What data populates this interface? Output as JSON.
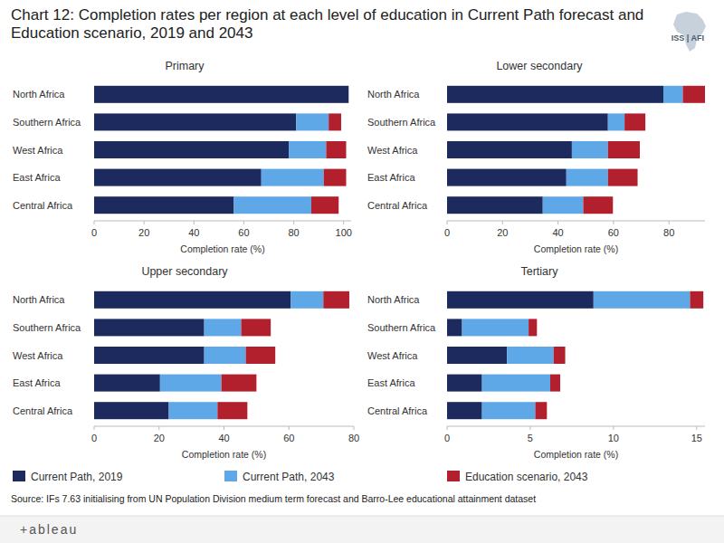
{
  "title": "Chart 12: Completion rates per region at each level of education in Current Path forecast and Education scenario, 2019 and 2043",
  "source": "Source: IFs 7.63 initialising from UN Population Division medium term forecast and Barro-Lee educational attainment dataset",
  "brand": "ISS | AFI",
  "footer": "+ableau",
  "chart_data": [
    {
      "type": "bar",
      "orientation": "horizontal",
      "stacked": true,
      "grid": false,
      "legend": "bottom",
      "title": "Primary",
      "xlabel": "Completion rate (%)",
      "categories": [
        "North Africa",
        "Southern Africa",
        "West Africa",
        "East Africa",
        "Central Africa"
      ],
      "xlim": [
        0,
        103
      ],
      "xticks": [
        0,
        20,
        40,
        60,
        80,
        100
      ],
      "series": [
        {
          "name": "Current Path, 2019",
          "color": "#1c2a5e",
          "values": [
            102,
            81,
            78,
            67,
            56
          ]
        },
        {
          "name": "Current Path, 2043",
          "color": "#5ea8e8",
          "values": [
            0,
            13,
            15,
            25,
            31
          ]
        },
        {
          "name": "Education scenario, 2043",
          "color": "#b3202d",
          "values": [
            0,
            5,
            8,
            9,
            11
          ]
        }
      ]
    },
    {
      "type": "bar",
      "orientation": "horizontal",
      "stacked": true,
      "grid": false,
      "title": "Lower secondary",
      "xlabel": "Completion rate (%)",
      "categories": [
        "North Africa",
        "Southern Africa",
        "West Africa",
        "East Africa",
        "Central Africa"
      ],
      "xlim": [
        0,
        93
      ],
      "xticks": [
        0,
        20,
        40,
        60,
        80
      ],
      "series": [
        {
          "name": "Current Path, 2019",
          "color": "#1c2a5e",
          "values": [
            78,
            58,
            45,
            43,
            34.5
          ]
        },
        {
          "name": "Current Path, 2043",
          "color": "#5ea8e8",
          "values": [
            7,
            6,
            13,
            15,
            14.6
          ]
        },
        {
          "name": "Education scenario, 2043",
          "color": "#b3202d",
          "values": [
            8,
            7.5,
            11.5,
            10.7,
            10.7
          ]
        }
      ]
    },
    {
      "type": "bar",
      "orientation": "horizontal",
      "stacked": true,
      "grid": false,
      "title": "Upper secondary",
      "xlabel": "Completion rate (%)",
      "categories": [
        "North Africa",
        "Southern Africa",
        "West Africa",
        "East Africa",
        "Central Africa"
      ],
      "xlim": [
        0,
        80
      ],
      "xticks": [
        0,
        20,
        40,
        60,
        80
      ],
      "series": [
        {
          "name": "Current Path, 2019",
          "color": "#1c2a5e",
          "values": [
            60.6,
            33.9,
            33.9,
            20.3,
            23
          ]
        },
        {
          "name": "Current Path, 2043",
          "color": "#5ea8e8",
          "values": [
            10,
            11.4,
            12.8,
            18.9,
            15
          ]
        },
        {
          "name": "Education scenario, 2043",
          "color": "#b3202d",
          "values": [
            8,
            9.1,
            9.1,
            10.8,
            9.2
          ]
        }
      ]
    },
    {
      "type": "bar",
      "orientation": "horizontal",
      "stacked": true,
      "grid": false,
      "title": "Tertiary",
      "xlabel": "Completion rate (%)",
      "categories": [
        "North Africa",
        "Southern Africa",
        "West Africa",
        "East Africa",
        "Central Africa"
      ],
      "xlim": [
        0,
        15.5
      ],
      "xticks": [
        0,
        5,
        10,
        15
      ],
      "series": [
        {
          "name": "Current Path, 2019",
          "color": "#1c2a5e",
          "values": [
            8.8,
            0.9,
            3.6,
            2.1,
            2.1
          ]
        },
        {
          "name": "Current Path, 2043",
          "color": "#5ea8e8",
          "values": [
            5.8,
            4,
            2.8,
            4.1,
            3.2
          ]
        },
        {
          "name": "Education scenario, 2043",
          "color": "#b3202d",
          "values": [
            0.8,
            0.5,
            0.7,
            0.6,
            0.7
          ]
        }
      ]
    }
  ]
}
